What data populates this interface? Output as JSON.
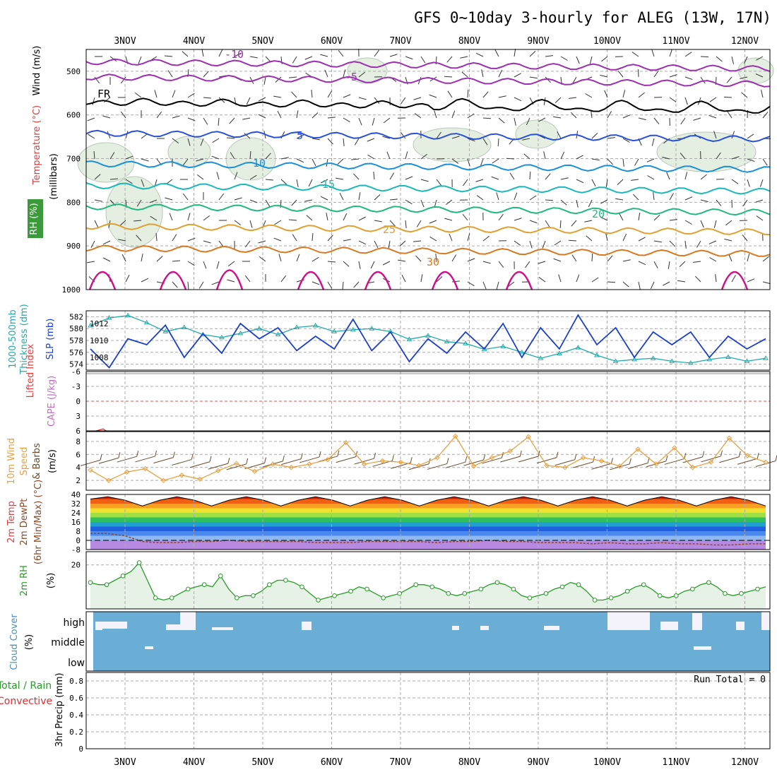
{
  "title": "GFS 0~10day 3-hourly for ALEG (13W, 17N)",
  "dates": [
    "3NOV",
    "4NOV",
    "5NOV",
    "6NOV",
    "7NOV",
    "8NOV",
    "9NOV",
    "10NOV",
    "11NOV",
    "12NOV"
  ],
  "colors": {
    "thickness": "#22aaaa",
    "slp": "#1a3fcc",
    "wind10m": "#e8a040",
    "rh2m": "#2a9a2a",
    "cloud": "#6aaed6",
    "cape_zero": "#e05050"
  },
  "chart_data": [
    {
      "type": "heatmap",
      "panel": "upper-air",
      "ylabels": [
        "Wind (m/s)",
        "Temperature (°C)",
        "RH (%)",
        "(millibars)"
      ],
      "yticks": [
        500,
        600,
        700,
        800,
        900,
        1000
      ],
      "ylim": [
        450,
        1000
      ],
      "isotherm_labels": [
        {
          "t": "-10",
          "c": "#9a2fb0"
        },
        {
          "t": "-5",
          "c": "#9a2fb0"
        },
        {
          "t": "FR",
          "c": "#000"
        },
        {
          "t": "5",
          "c": "#2a50d8"
        },
        {
          "t": "10",
          "c": "#1a90d8"
        },
        {
          "t": "15",
          "c": "#1ab8b8"
        },
        {
          "t": "20",
          "c": "#20b880"
        },
        {
          "t": "25",
          "c": "#e0a030"
        },
        {
          "t": "30",
          "c": "#d87820"
        }
      ],
      "isotherms": [
        {
          "label": "-10",
          "level": 478
        },
        {
          "label": "-5",
          "level": 513
        },
        {
          "label": "FR",
          "level": 570
        },
        {
          "label": "5",
          "level": 642
        },
        {
          "label": "10",
          "level": 712
        },
        {
          "label": "15",
          "level": 762
        },
        {
          "label": "20",
          "level": 810
        },
        {
          "label": "25",
          "level": 855
        },
        {
          "label": "30",
          "level": 905
        }
      ]
    },
    {
      "type": "line",
      "panel": "thickness-slp",
      "ylabels": [
        "1000-500mb",
        "Thickness (dm)",
        "SLP (mb)"
      ],
      "series": [
        {
          "name": "Thickness (dm)",
          "values": [
            580.5,
            581.8,
            582.2,
            581.0,
            579.5,
            580.2,
            579.0,
            578.5,
            579.2,
            580.0,
            579.0,
            580.2,
            580.5,
            579.5,
            579.8,
            580.0,
            579.5,
            578.2,
            578.8,
            577.8,
            577.5,
            576.5,
            577.0,
            576.0,
            575.0,
            575.8,
            576.8,
            575.5,
            574.5,
            574.8,
            575.0,
            574.5,
            574.2,
            574.8,
            575.2,
            574.5,
            575.0
          ]
        },
        {
          "name": "SLP (mb)",
          "values": [
            1009.0,
            1006.8,
            1010.2,
            1009.5,
            1011.8,
            1008.0,
            1010.8,
            1008.5,
            1012.0,
            1010.2,
            1011.5,
            1008.8,
            1010.5,
            1009.0,
            1012.5,
            1008.8,
            1011.0,
            1007.5,
            1010.2,
            1008.5,
            1011.0,
            1009.0,
            1012.0,
            1008.0,
            1011.5,
            1009.0,
            1013.0,
            1009.5,
            1011.5,
            1008.0,
            1011.0,
            1009.5,
            1011.0,
            1008.0,
            1010.5,
            1009.0,
            1010.2
          ]
        }
      ],
      "yticks_left": [
        574,
        576,
        578,
        580,
        582
      ],
      "yticks_right": [
        1008,
        1010,
        1012
      ],
      "ylim_left": [
        573,
        583
      ],
      "ylim_right": [
        1006.5,
        1013.5
      ]
    },
    {
      "type": "line",
      "panel": "cape-li",
      "ylabels": [
        "Lifted Index",
        "CAPE (J/kg)"
      ],
      "yticks": [
        "-6",
        "-3",
        "0",
        "3",
        "6"
      ],
      "ylim": [
        -6,
        6
      ],
      "series": [
        {
          "name": "Lifted Index",
          "values": [
            6.0,
            5.8,
            5.6,
            6.0,
            6.0
          ]
        }
      ]
    },
    {
      "type": "line",
      "panel": "wind10m",
      "ylabels": [
        "10m Wind",
        "Speed",
        "& Barbs",
        "(m/s)"
      ],
      "yticks": [
        2,
        4,
        6,
        8
      ],
      "ylim": [
        0.5,
        9.5
      ],
      "series": [
        {
          "name": "10m Wind Speed",
          "values": [
            3.6,
            2.0,
            3.3,
            3.8,
            2.0,
            2.8,
            2.2,
            3.5,
            4.6,
            3.4,
            4.5,
            4.0,
            4.5,
            5.2,
            7.8,
            4.5,
            5.0,
            4.8,
            4.3,
            5.5,
            8.8,
            4.2,
            5.5,
            6.5,
            8.7,
            4.3,
            4.0,
            5.5,
            5.0,
            4.2,
            6.8,
            4.5,
            7.0,
            4.0,
            4.8,
            8.5,
            5.8,
            4.8
          ]
        }
      ]
    },
    {
      "type": "area",
      "panel": "temp2m",
      "ylabels": [
        "2m Temp",
        "2m DewPt",
        "(6hr Min/Max) (°C)"
      ],
      "yticks": [
        "-8",
        "0",
        "8",
        "16",
        "24",
        "32",
        "40"
      ],
      "ylim": [
        -8,
        40
      ],
      "series": [
        {
          "name": "2m Temp",
          "values": [
            36,
            38,
            35,
            30,
            35,
            38,
            35,
            30,
            35,
            38,
            35,
            30,
            35,
            38,
            35,
            30,
            35,
            38,
            35,
            30,
            35,
            38,
            35,
            30,
            35,
            38,
            35,
            30,
            35,
            38,
            35,
            30,
            35,
            38,
            35,
            30,
            35,
            38,
            35,
            30
          ]
        },
        {
          "name": "2m DewPt",
          "values": [
            6,
            6,
            4,
            -1,
            -2,
            -2,
            -1,
            -1,
            0,
            -1,
            -1,
            -1,
            -1,
            -2,
            -2,
            -2,
            -1,
            -1,
            -1,
            -1,
            -2,
            -1,
            -1,
            0,
            -1,
            -1,
            -2,
            -2,
            -2,
            -3,
            -2,
            -3,
            -3,
            -2,
            -3,
            -3,
            -4,
            -4,
            -3,
            -3
          ]
        }
      ]
    },
    {
      "type": "line",
      "panel": "rh2m",
      "ylabels": [
        "2m RH",
        "(%)"
      ],
      "yticks": [
        20
      ],
      "ylim": [
        0,
        26
      ],
      "series": [
        {
          "name": "2m RH",
          "values": [
            12,
            11,
            11,
            13,
            15,
            17,
            21,
            13,
            5,
            4,
            5,
            7,
            9,
            10,
            11,
            10,
            15,
            9,
            5,
            6,
            6,
            8,
            11,
            13,
            13,
            12,
            10,
            7,
            4,
            5,
            6,
            7,
            8,
            10,
            9,
            7,
            5,
            6,
            7,
            9,
            11,
            11,
            10,
            9,
            7,
            6,
            7,
            8,
            9,
            11,
            12,
            11,
            9,
            6,
            5,
            6,
            7,
            9,
            10,
            12,
            11,
            8,
            4,
            4,
            5,
            6,
            8,
            10,
            11,
            9,
            6,
            5,
            6,
            8,
            9,
            11,
            12,
            10,
            7,
            6,
            7,
            8,
            9,
            10
          ]
        }
      ]
    },
    {
      "type": "bar",
      "panel": "cloud",
      "ylabels": [
        "Cloud Cover",
        "(%)"
      ],
      "yticks": [
        "high",
        "middle",
        "low"
      ],
      "run_label": "Run Total = 0"
    },
    {
      "type": "bar",
      "panel": "precip",
      "ylabels": [
        "Total / Rain",
        "Convective",
        "3hr Precip (mm)"
      ],
      "yticks": [
        "0",
        "0.2",
        "0.4",
        "0.6",
        "0.8"
      ],
      "ylim": [
        0,
        0.9
      ],
      "values": []
    }
  ]
}
